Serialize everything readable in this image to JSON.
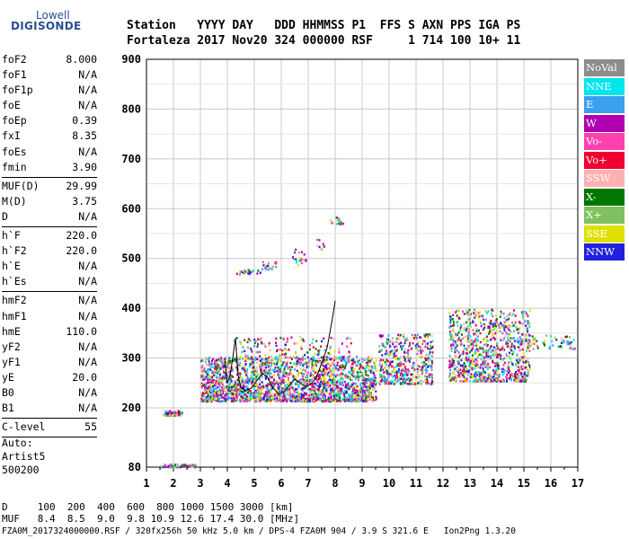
{
  "logo": {
    "line1": "Lowell",
    "line2": "DIGISONDE"
  },
  "header": {
    "row1": "Station   YYYY DAY   DDD HHMMSS P1  FFS S AXN PPS IGA PS",
    "row2": "Fortaleza 2017 Nov20 324 000000 RSF     1 714 100 10+ 11"
  },
  "left_panel": {
    "groups": [
      [
        {
          "k": "foF2",
          "v": "8.000"
        },
        {
          "k": "foF1",
          "v": "N/A"
        },
        {
          "k": "foF1p",
          "v": "N/A"
        },
        {
          "k": "foE",
          "v": "N/A"
        },
        {
          "k": "foEp",
          "v": "0.39"
        },
        {
          "k": "fxI",
          "v": "8.35"
        },
        {
          "k": "foEs",
          "v": "N/A"
        },
        {
          "k": "fmin",
          "v": "3.90"
        }
      ],
      [
        {
          "k": "MUF(D)",
          "v": "29.99"
        },
        {
          "k": "M(D)",
          "v": "3.75"
        },
        {
          "k": "D",
          "v": "N/A"
        }
      ],
      [
        {
          "k": "h`F",
          "v": "220.0"
        },
        {
          "k": "h`F2",
          "v": "220.0"
        },
        {
          "k": "h`E",
          "v": "N/A"
        },
        {
          "k": "h`Es",
          "v": "N/A"
        }
      ],
      [
        {
          "k": "hmF2",
          "v": "N/A"
        },
        {
          "k": "hmF1",
          "v": "N/A"
        },
        {
          "k": "hmE",
          "v": "110.0"
        },
        {
          "k": "yF2",
          "v": "N/A"
        },
        {
          "k": "yF1",
          "v": "N/A"
        },
        {
          "k": "yE",
          "v": "20.0"
        },
        {
          "k": "B0",
          "v": "N/A"
        },
        {
          "k": "B1",
          "v": "N/A"
        }
      ],
      [
        {
          "k": "C-level",
          "v": "55"
        }
      ]
    ],
    "auto_label": "Auto:",
    "artist": "Artist5",
    "code": "500200"
  },
  "legend": [
    {
      "label": "NoVal",
      "color": "#8c8c8c"
    },
    {
      "label": "NNE",
      "color": "#00e5ee"
    },
    {
      "label": "E",
      "color": "#3aa0f0"
    },
    {
      "label": "W",
      "color": "#b000b0"
    },
    {
      "label": "Vo-",
      "color": "#ff40b0"
    },
    {
      "label": "Vo+",
      "color": "#f00030"
    },
    {
      "label": "SSW",
      "color": "#ffb0b0"
    },
    {
      "label": "X-",
      "color": "#007800"
    },
    {
      "label": "X+",
      "color": "#80c060"
    },
    {
      "label": "SSE",
      "color": "#e0e000"
    },
    {
      "label": "NNW",
      "color": "#2020e0"
    }
  ],
  "footer": {
    "d_row": "D     100  200  400  600  800 1000 1500 3000 [km]",
    "muf_row": "MUF   8.4  8.5  9.0  9.8 10.9 12.6 17.4 30.0 [MHz]",
    "file_row": "FZA0M_2017324000000.RSF / 320fx256h 50 kHz 5.0 km / DPS-4 FZA0M 904 / 3.9 S 321.6 E   Ion2Png 1.3.20"
  },
  "chart_data": {
    "type": "scatter",
    "xlim": [
      1,
      17
    ],
    "ylim": [
      80,
      900
    ],
    "x_ticks": [
      1,
      2,
      3,
      4,
      5,
      6,
      7,
      8,
      9,
      10,
      11,
      12,
      13,
      14,
      15,
      16,
      17
    ],
    "y_ticks": [
      80,
      200,
      300,
      400,
      500,
      600,
      700,
      800,
      900
    ],
    "grid": true,
    "trace": [
      [
        3.9,
        300
      ],
      [
        4.0,
        250
      ],
      [
        4.1,
        265
      ],
      [
        4.2,
        300
      ],
      [
        4.3,
        340
      ],
      [
        4.4,
        265
      ],
      [
        4.5,
        240
      ],
      [
        4.7,
        235
      ],
      [
        4.9,
        240
      ],
      [
        5.1,
        255
      ],
      [
        5.3,
        270
      ],
      [
        5.5,
        260
      ],
      [
        5.7,
        240
      ],
      [
        5.9,
        228
      ],
      [
        6.1,
        232
      ],
      [
        6.3,
        245
      ],
      [
        6.5,
        258
      ],
      [
        6.7,
        250
      ],
      [
        6.9,
        242
      ],
      [
        7.1,
        248
      ],
      [
        7.3,
        260
      ],
      [
        7.5,
        290
      ],
      [
        7.7,
        320
      ],
      [
        7.9,
        380
      ],
      [
        8.0,
        415
      ]
    ],
    "clusters": [
      {
        "x": [
          1.6,
          2.3
        ],
        "y": [
          186,
          196
        ],
        "n": 60
      },
      {
        "x": [
          1.5,
          2.8
        ],
        "y": [
          82,
          88
        ],
        "n": 80
      },
      {
        "x": [
          3.0,
          9.5
        ],
        "y": [
          215,
          305
        ],
        "n": 2200
      },
      {
        "x": [
          4.2,
          8.6
        ],
        "y": [
          300,
          345
        ],
        "n": 150
      },
      {
        "x": [
          9.6,
          11.6
        ],
        "y": [
          250,
          350
        ],
        "n": 450
      },
      {
        "x": [
          12.2,
          15.2
        ],
        "y": [
          255,
          400
        ],
        "n": 900
      },
      {
        "x": [
          15.1,
          16.9
        ],
        "y": [
          320,
          350
        ],
        "n": 60
      },
      {
        "x": [
          4.3,
          5.2
        ],
        "y": [
          470,
          480
        ],
        "n": 25
      },
      {
        "x": [
          5.2,
          5.8
        ],
        "y": [
          480,
          495
        ],
        "n": 20
      },
      {
        "x": [
          6.4,
          6.9
        ],
        "y": [
          488,
          520
        ],
        "n": 20
      },
      {
        "x": [
          7.8,
          8.3
        ],
        "y": [
          570,
          585
        ],
        "n": 15
      },
      {
        "x": [
          7.3,
          7.6
        ],
        "y": [
          520,
          540
        ],
        "n": 10
      }
    ]
  }
}
